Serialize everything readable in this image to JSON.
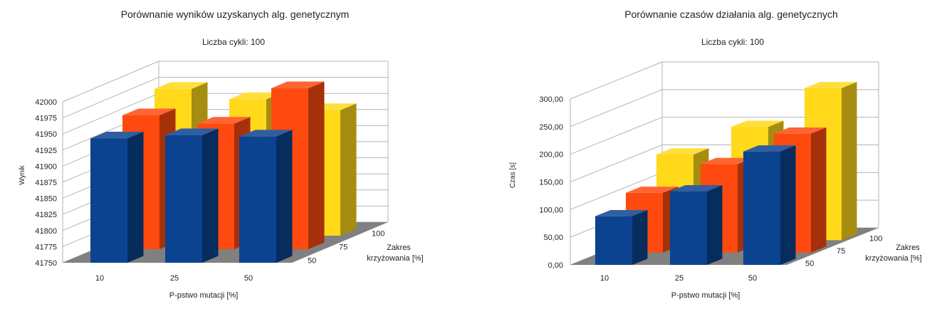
{
  "colors": {
    "blue": "#0b4390",
    "orange": "#ff4a0f",
    "yellow": "#ffd91a",
    "grid": "#b3b3b3",
    "floor": "#808080"
  },
  "chart_data": [
    {
      "type": "bar3d",
      "title": "Porównanie wyników uzyskanych alg. genetycznym",
      "subtitle": "Liczba cykli: 100",
      "ylabel": "Wynik",
      "xlabel": "P-pstwo mutacji  [%]",
      "zlabel": [
        "Zakres",
        "krzyżowania [%]"
      ],
      "categories": [
        "10",
        "25",
        "50"
      ],
      "depth_categories": [
        "50",
        "75",
        "100"
      ],
      "yticks": [
        "41750",
        "41775",
        "41800",
        "41825",
        "41850",
        "41875",
        "41900",
        "41925",
        "41950",
        "41975",
        "42000"
      ],
      "ylim": [
        41750,
        42000
      ],
      "series": [
        {
          "depth": "100",
          "color": "yellow",
          "values": [
            41978,
            41962,
            41945
          ]
        },
        {
          "depth": "75",
          "color": "orange",
          "values": [
            41958,
            41945,
            42000
          ]
        },
        {
          "depth": "50",
          "color": "blue",
          "values": [
            41943,
            41948,
            41946
          ]
        }
      ]
    },
    {
      "type": "bar3d",
      "title": "Porównanie czasów działania alg. genetycznych",
      "subtitle": "Liczba cykli: 100",
      "ylabel": "Czas [s]",
      "xlabel": "P-pstwo mutacji  [%]",
      "zlabel": [
        "Zakres",
        "krzyżowania [%]"
      ],
      "categories": [
        "10",
        "25",
        "50"
      ],
      "depth_categories": [
        "50",
        "75",
        "100"
      ],
      "yticks": [
        "0,00",
        "50,00",
        "100,00",
        "150,00",
        "200,00",
        "250,00",
        "300,00"
      ],
      "ylim": [
        0,
        300
      ],
      "series": [
        {
          "depth": "100",
          "color": "yellow",
          "values": [
            155,
            205,
            275
          ]
        },
        {
          "depth": "75",
          "color": "orange",
          "values": [
            108,
            160,
            215
          ]
        },
        {
          "depth": "50",
          "color": "blue",
          "values": [
            88,
            133,
            205
          ]
        }
      ]
    }
  ]
}
